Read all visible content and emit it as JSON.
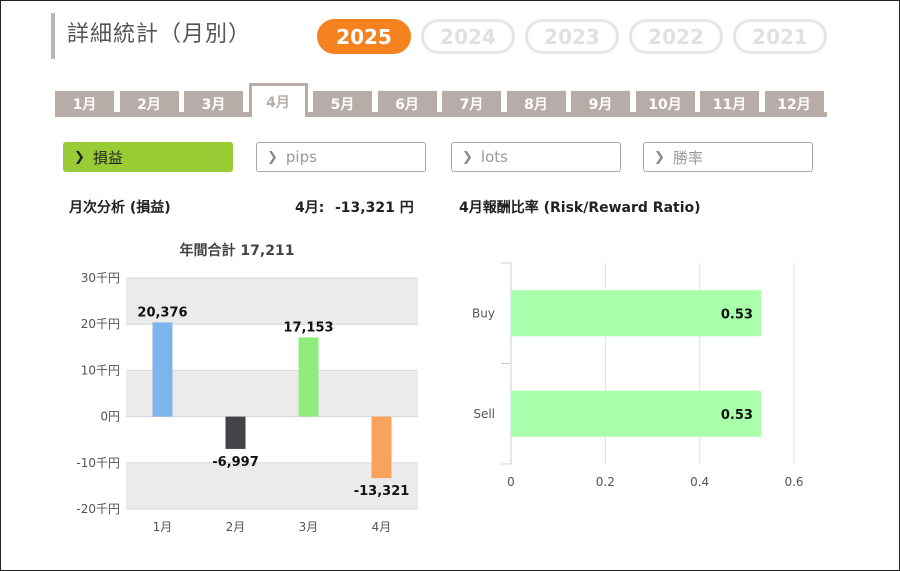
{
  "page": {
    "title": "詳細統計（月別）"
  },
  "years": [
    {
      "label": "2025",
      "active": true
    },
    {
      "label": "2024",
      "active": false
    },
    {
      "label": "2023",
      "active": false
    },
    {
      "label": "2022",
      "active": false
    },
    {
      "label": "2021",
      "active": false
    }
  ],
  "months": [
    "1月",
    "2月",
    "3月",
    "4月",
    "5月",
    "6月",
    "7月",
    "8月",
    "9月",
    "10月",
    "11月",
    "12月"
  ],
  "active_month_index": 3,
  "filters": [
    {
      "label": "損益",
      "active": true
    },
    {
      "label": "pips",
      "active": false
    },
    {
      "label": "lots",
      "active": false
    },
    {
      "label": "勝率",
      "active": false
    }
  ],
  "filter_chevron": "chevron-right-icon",
  "colors": {
    "accent": "#f5821f",
    "tab": "#b8aca9",
    "filter_active": "#98cb34"
  },
  "monthly": {
    "title": "月次分析 (損益)",
    "current_label": "4月:",
    "current_value": "-13,321 円"
  },
  "ratio": {
    "title": "4月報酬比率 (Risk/Reward Ratio)"
  },
  "chart_data": [
    {
      "type": "bar",
      "title": "年間合計 17,211",
      "categories": [
        "1月",
        "2月",
        "3月",
        "4月"
      ],
      "values": [
        20376,
        -6997,
        17153,
        -13321
      ],
      "value_labels": [
        "20,376",
        "-6,997",
        "17,153",
        "-13,321"
      ],
      "colors": [
        "#7cb5ec",
        "#434348",
        "#90ed7d",
        "#f7a35c"
      ],
      "ylim": [
        -20000,
        30000
      ],
      "yticks": [
        30000,
        20000,
        10000,
        0,
        -10000,
        -20000
      ],
      "ytick_labels": [
        "30千円",
        "20千円",
        "10千円",
        "0円",
        "-10千円",
        "-20千円"
      ],
      "xlabel": "",
      "ylabel": "",
      "grid": "alternating bands"
    },
    {
      "type": "bar",
      "orientation": "horizontal",
      "categories": [
        "Buy",
        "Sell"
      ],
      "values": [
        0.53,
        0.53
      ],
      "value_labels": [
        "0.53",
        "0.53"
      ],
      "color": "#aaffaa",
      "xlim": [
        0,
        0.6
      ],
      "xticks": [
        0,
        0.2,
        0.4,
        0.6
      ],
      "xtick_labels": [
        "0",
        "0.2",
        "0.4",
        "0.6"
      ],
      "grid": true
    }
  ]
}
